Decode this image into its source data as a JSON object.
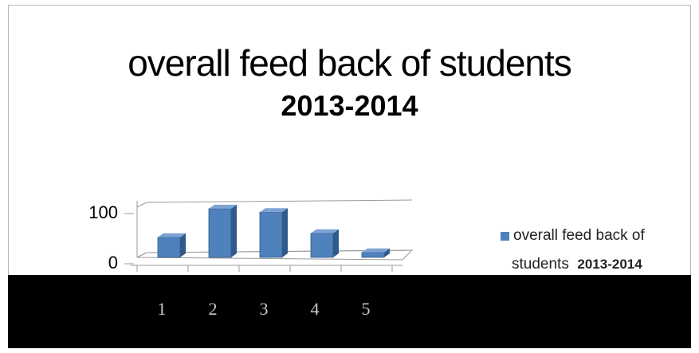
{
  "chart_data": {
    "type": "bar",
    "title": "overall feed back of students",
    "subtitle": "2013-2014",
    "categories": [
      "1",
      "2",
      "3",
      "4",
      "5"
    ],
    "series": [
      {
        "name": "overall feed back of students 2013-2014",
        "name_part_a": "overall feed back of",
        "name_part_b": "students",
        "name_part_c": "2013-2014",
        "values": [
          40,
          97,
          90,
          48,
          10
        ]
      }
    ],
    "yticks": [
      "0",
      "100"
    ],
    "ylim": [
      0,
      100
    ],
    "legend_position": "right",
    "grid": true,
    "bar_color": "#4f81bd"
  }
}
